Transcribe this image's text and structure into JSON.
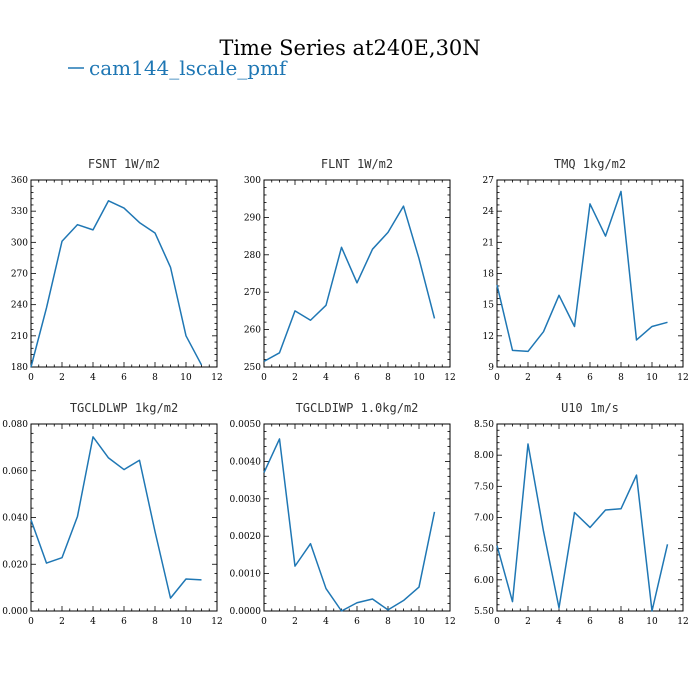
{
  "figure": {
    "title": "Time Series at240E,30N",
    "legend": [
      {
        "name": "cam144_lscale_pmf",
        "color": "#1f77b4"
      }
    ]
  },
  "chart_data": [
    {
      "type": "line",
      "title": "FSNT  1W/m2",
      "xlim": [
        0,
        12
      ],
      "xticks": [
        0,
        2,
        4,
        6,
        8,
        10,
        12
      ],
      "ylim": [
        180,
        360
      ],
      "yticks": [
        180,
        210,
        240,
        270,
        300,
        330,
        360
      ],
      "ytick_labels": [
        "180",
        "210",
        "240",
        "270",
        "300",
        "330",
        "360"
      ],
      "series": [
        {
          "name": "cam144_lscale_pmf",
          "color": "#1f77b4",
          "x": [
            0,
            1,
            2,
            3,
            4,
            5,
            6,
            7,
            8,
            9,
            10,
            11
          ],
          "y": [
            180,
            237,
            301,
            317,
            312,
            340,
            333,
            319,
            309,
            276,
            210,
            182
          ]
        }
      ]
    },
    {
      "type": "line",
      "title": "FLNT  1W/m2",
      "xlim": [
        0,
        12
      ],
      "xticks": [
        0,
        2,
        4,
        6,
        8,
        10,
        12
      ],
      "ylim": [
        250,
        300
      ],
      "yticks": [
        250,
        260,
        270,
        280,
        290,
        300
      ],
      "ytick_labels": [
        "250",
        "260",
        "270",
        "280",
        "290",
        "300"
      ],
      "series": [
        {
          "name": "cam144_lscale_pmf",
          "color": "#1f77b4",
          "x": [
            0,
            1,
            2,
            3,
            4,
            5,
            6,
            7,
            8,
            9,
            10,
            11
          ],
          "y": [
            251.5,
            253.8,
            265,
            262.5,
            266.5,
            282,
            272.5,
            281.5,
            286,
            293,
            279,
            263
          ]
        }
      ]
    },
    {
      "type": "line",
      "title": "TMQ  1kg/m2",
      "xlim": [
        0,
        12
      ],
      "xticks": [
        0,
        2,
        4,
        6,
        8,
        10,
        12
      ],
      "ylim": [
        9,
        27
      ],
      "yticks": [
        9,
        12,
        15,
        18,
        21,
        24,
        27
      ],
      "ytick_labels": [
        "9",
        "12",
        "15",
        "18",
        "21",
        "24",
        "27"
      ],
      "series": [
        {
          "name": "cam144_lscale_pmf",
          "color": "#1f77b4",
          "x": [
            0,
            1,
            2,
            3,
            4,
            5,
            6,
            7,
            8,
            9,
            10,
            11
          ],
          "y": [
            16.9,
            10.6,
            10.5,
            12.4,
            15.9,
            12.9,
            24.7,
            21.6,
            25.9,
            11.6,
            12.9,
            13.3
          ]
        }
      ]
    },
    {
      "type": "line",
      "title": "TGCLDLWP  1kg/m2",
      "xlim": [
        0,
        12
      ],
      "xticks": [
        0,
        2,
        4,
        6,
        8,
        10,
        12
      ],
      "ylim": [
        0,
        0.08
      ],
      "yticks": [
        0,
        0.02,
        0.04,
        0.06,
        0.08
      ],
      "ytick_labels": [
        "0.000",
        "0.020",
        "0.040",
        "0.060",
        "0.080"
      ],
      "series": [
        {
          "name": "cam144_lscale_pmf",
          "color": "#1f77b4",
          "x": [
            0,
            1,
            2,
            3,
            4,
            5,
            6,
            7,
            8,
            9,
            10,
            11
          ],
          "y": [
            0.039,
            0.0205,
            0.0228,
            0.0405,
            0.0745,
            0.0655,
            0.0605,
            0.0645,
            0.034,
            0.0055,
            0.0137,
            0.0133
          ]
        }
      ]
    },
    {
      "type": "line",
      "title": "TGCLDIWP  1.0kg/m2",
      "xlim": [
        0,
        12
      ],
      "xticks": [
        0,
        2,
        4,
        6,
        8,
        10,
        12
      ],
      "ylim": [
        0,
        0.005
      ],
      "yticks": [
        0,
        0.001,
        0.002,
        0.003,
        0.004,
        0.005
      ],
      "ytick_labels": [
        "0.0000",
        "0.0010",
        "0.0020",
        "0.0030",
        "0.0040",
        "0.0050"
      ],
      "series": [
        {
          "name": "cam144_lscale_pmf",
          "color": "#1f77b4",
          "x": [
            0,
            1,
            2,
            3,
            4,
            5,
            6,
            7,
            8,
            9,
            10,
            11
          ],
          "y": [
            0.0037,
            0.0046,
            0.0012,
            0.0018,
            0.0006,
            0.0,
            0.00022,
            0.00032,
            3e-05,
            0.00028,
            0.00064,
            0.00265
          ]
        }
      ]
    },
    {
      "type": "line",
      "title": "U10  1m/s",
      "xlim": [
        0,
        12
      ],
      "xticks": [
        0,
        2,
        4,
        6,
        8,
        10,
        12
      ],
      "ylim": [
        5.5,
        8.5
      ],
      "yticks": [
        5.5,
        6.0,
        6.5,
        7.0,
        7.5,
        8.0,
        8.5
      ],
      "ytick_labels": [
        "5.50",
        "6.00",
        "6.50",
        "7.00",
        "7.50",
        "8.00",
        "8.50"
      ],
      "series": [
        {
          "name": "cam144_lscale_pmf",
          "color": "#1f77b4",
          "x": [
            0,
            1,
            2,
            3,
            4,
            5,
            6,
            7,
            8,
            9,
            10,
            11
          ],
          "y": [
            6.55,
            5.65,
            8.18,
            6.78,
            5.55,
            7.08,
            6.84,
            7.12,
            7.14,
            7.68,
            5.5,
            6.57
          ]
        }
      ]
    }
  ]
}
